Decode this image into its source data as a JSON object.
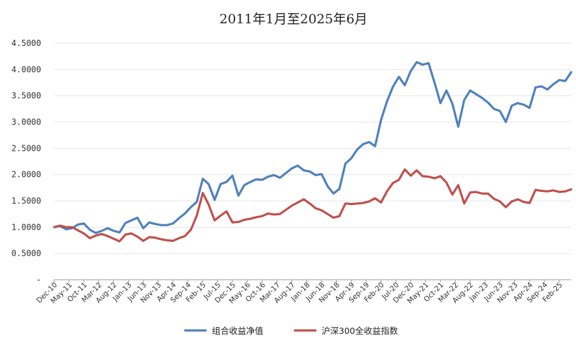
{
  "chart_data": {
    "type": "line",
    "title": "2011年1月至2025年6月",
    "xlabel": "",
    "ylabel": "",
    "ylim": [
      0,
      4.5
    ],
    "yticks": [
      {
        "value": 0,
        "label": "-"
      },
      {
        "value": 0.5,
        "label": "0.5000"
      },
      {
        "value": 1.0,
        "label": "1.0000"
      },
      {
        "value": 1.5,
        "label": "1.5000"
      },
      {
        "value": 2.0,
        "label": "2.0000"
      },
      {
        "value": 2.5,
        "label": "2.5000"
      },
      {
        "value": 3.0,
        "label": "3.0000"
      },
      {
        "value": 3.5,
        "label": "3.5000"
      },
      {
        "value": 4.0,
        "label": "4.0000"
      },
      {
        "value": 4.5,
        "label": "4.5000"
      }
    ],
    "x": [
      "2010-12",
      "2011-02",
      "2011-04",
      "2011-06",
      "2011-08",
      "2011-10",
      "2011-12",
      "2012-02",
      "2012-04",
      "2012-06",
      "2012-08",
      "2012-10",
      "2012-12",
      "2013-02",
      "2013-04",
      "2013-06",
      "2013-08",
      "2013-10",
      "2013-12",
      "2014-02",
      "2014-04",
      "2014-06",
      "2014-08",
      "2014-10",
      "2014-12",
      "2015-02",
      "2015-04",
      "2015-06",
      "2015-08",
      "2015-10",
      "2015-12",
      "2016-02",
      "2016-04",
      "2016-06",
      "2016-08",
      "2016-10",
      "2016-12",
      "2017-02",
      "2017-04",
      "2017-06",
      "2017-08",
      "2017-10",
      "2017-12",
      "2018-02",
      "2018-04",
      "2018-06",
      "2018-08",
      "2018-10",
      "2018-12",
      "2019-02",
      "2019-04",
      "2019-06",
      "2019-08",
      "2019-10",
      "2019-12",
      "2020-02",
      "2020-04",
      "2020-06",
      "2020-08",
      "2020-10",
      "2020-12",
      "2021-02",
      "2021-04",
      "2021-06",
      "2021-08",
      "2021-10",
      "2021-12",
      "2022-02",
      "2022-04",
      "2022-06",
      "2022-08",
      "2022-10",
      "2022-12",
      "2023-02",
      "2023-04",
      "2023-06",
      "2023-08",
      "2023-10",
      "2023-12",
      "2024-02",
      "2024-04",
      "2024-06",
      "2024-08",
      "2024-10",
      "2024-12",
      "2025-02",
      "2025-04",
      "2025-06"
    ],
    "xticks": [
      "Dec-10",
      "May-11",
      "Oct-11",
      "Mar-12",
      "Aug-12",
      "Jan-13",
      "Jun-13",
      "Nov-13",
      "Apr-14",
      "Sep-14",
      "Feb-15",
      "Jul-15",
      "Dec-15",
      "May-16",
      "Oct-16",
      "Mar-17",
      "Aug-17",
      "Jan-18",
      "Jun-18",
      "Nov-18",
      "Apr-19",
      "Sep-19",
      "Feb-20",
      "Jul-20",
      "Dec-20",
      "May-21",
      "Oct-21",
      "Mar-22",
      "Aug-22",
      "Jan-23",
      "Jun-23",
      "Nov-23",
      "Apr-24",
      "Sep-24",
      "Feb-25"
    ],
    "xtick_dates": [
      "2010-12",
      "2011-05",
      "2011-10",
      "2012-03",
      "2012-08",
      "2013-01",
      "2013-06",
      "2013-11",
      "2014-04",
      "2014-09",
      "2015-02",
      "2015-07",
      "2015-12",
      "2016-05",
      "2016-10",
      "2017-03",
      "2017-08",
      "2018-01",
      "2018-06",
      "2018-11",
      "2019-04",
      "2019-09",
      "2020-02",
      "2020-07",
      "2020-12",
      "2021-05",
      "2021-10",
      "2022-03",
      "2022-08",
      "2023-01",
      "2023-06",
      "2023-11",
      "2024-04",
      "2024-09",
      "2025-02"
    ],
    "series": [
      {
        "name": "组合收益净值",
        "color": "#4f81bd",
        "values": [
          1.0,
          1.02,
          0.96,
          0.98,
          1.05,
          1.07,
          0.95,
          0.89,
          0.93,
          0.98,
          0.93,
          0.9,
          1.08,
          1.13,
          1.18,
          0.98,
          1.09,
          1.06,
          1.04,
          1.04,
          1.07,
          1.17,
          1.26,
          1.38,
          1.48,
          1.92,
          1.82,
          1.52,
          1.82,
          1.86,
          1.98,
          1.6,
          1.8,
          1.86,
          1.91,
          1.9,
          1.96,
          1.99,
          1.94,
          2.03,
          2.12,
          2.17,
          2.08,
          2.06,
          1.99,
          2.01,
          1.78,
          1.64,
          1.73,
          2.21,
          2.31,
          2.48,
          2.58,
          2.62,
          2.54,
          3.04,
          3.39,
          3.67,
          3.86,
          3.7,
          3.97,
          4.14,
          4.09,
          4.12,
          3.75,
          3.36,
          3.6,
          3.35,
          2.91,
          3.42,
          3.6,
          3.53,
          3.46,
          3.37,
          3.25,
          3.21,
          3.0,
          3.31,
          3.36,
          3.33,
          3.27,
          3.66,
          3.68,
          3.62,
          3.72,
          3.8,
          3.78,
          3.95
        ]
      },
      {
        "name": "沪深300全收益指数",
        "color": "#c0504d",
        "values": [
          1.0,
          1.03,
          1.0,
          1.0,
          0.94,
          0.88,
          0.79,
          0.84,
          0.87,
          0.83,
          0.78,
          0.73,
          0.86,
          0.88,
          0.82,
          0.74,
          0.81,
          0.8,
          0.77,
          0.75,
          0.74,
          0.79,
          0.83,
          0.95,
          1.22,
          1.65,
          1.43,
          1.13,
          1.22,
          1.3,
          1.09,
          1.1,
          1.14,
          1.16,
          1.19,
          1.21,
          1.26,
          1.24,
          1.25,
          1.33,
          1.41,
          1.47,
          1.53,
          1.45,
          1.36,
          1.32,
          1.25,
          1.18,
          1.21,
          1.45,
          1.44,
          1.45,
          1.46,
          1.49,
          1.55,
          1.47,
          1.68,
          1.84,
          1.9,
          2.1,
          1.98,
          2.08,
          1.97,
          1.96,
          1.93,
          1.97,
          1.85,
          1.62,
          1.8,
          1.45,
          1.66,
          1.67,
          1.64,
          1.64,
          1.54,
          1.49,
          1.38,
          1.49,
          1.53,
          1.48,
          1.46,
          1.71,
          1.69,
          1.68,
          1.7,
          1.67,
          1.68,
          1.72
        ]
      }
    ],
    "legend_position": "bottom-center",
    "grid": true
  }
}
